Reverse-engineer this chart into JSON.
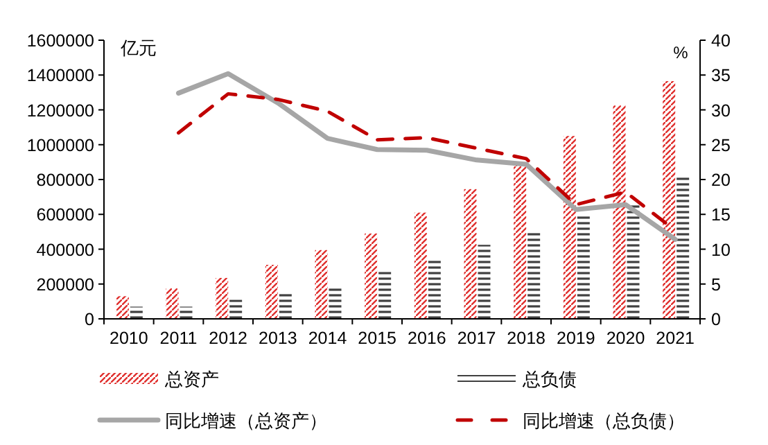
{
  "chart_data": {
    "type": "bar",
    "ylabel": "亿元",
    "y2label": "%",
    "categories": [
      "2010",
      "2011",
      "2012",
      "2013",
      "2014",
      "2015",
      "2016",
      "2017",
      "2018",
      "2019",
      "2020",
      "2021"
    ],
    "series": [
      {
        "name": "总资产",
        "color": "#e0302e",
        "values": [
          130000,
          175000,
          235000,
          310000,
          395000,
          490000,
          610000,
          745000,
          880000,
          1050000,
          1225000,
          1365000
        ]
      },
      {
        "name": "总负债",
        "color": "#404040",
        "values": [
          70000,
          70000,
          110000,
          150000,
          190000,
          270000,
          345000,
          425000,
          505000,
          605000,
          660000,
          812000
        ]
      },
      {
        "name": "同比增速（总资产）",
        "type": "line",
        "axis": "y2",
        "color": "#a6a6a6",
        "line_style": "solid",
        "values": [
          null,
          32.4,
          35.2,
          31,
          25.9,
          24.3,
          24.2,
          22.8,
          22.2,
          15.7,
          16.4,
          11.4
        ]
      },
      {
        "name": "同比增速（总负债）",
        "type": "line",
        "axis": "y2",
        "color": "#c00000",
        "line_style": "dashed",
        "values": [
          null,
          26.7,
          32.3,
          31.5,
          29.8,
          25.7,
          26,
          24.5,
          23,
          16.4,
          18.2,
          12.7
        ]
      }
    ],
    "ylim": [
      0,
      1600000
    ],
    "yticks": [
      0,
      200000,
      400000,
      600000,
      800000,
      1000000,
      1200000,
      1400000,
      1600000
    ],
    "y2lim": [
      0,
      40
    ],
    "y2ticks": [
      0,
      5,
      10,
      15,
      20,
      25,
      30,
      35,
      40
    ],
    "legend": "bottom"
  }
}
